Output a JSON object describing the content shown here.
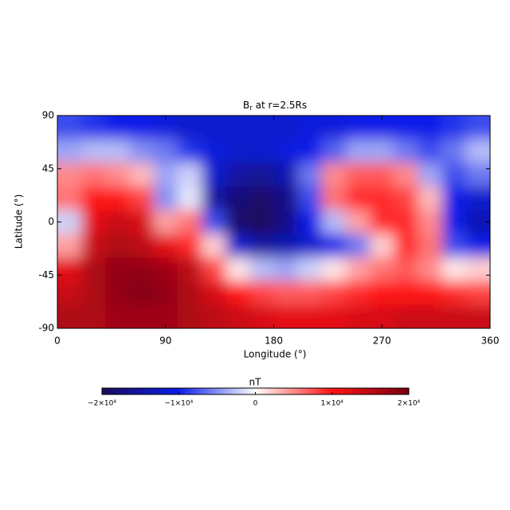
{
  "chart_data": {
    "type": "heatmap",
    "title_parts": [
      "B",
      "r",
      " at r=2.5Rs"
    ],
    "x_label": "Longitude (°)",
    "y_label": "Latitude (°)",
    "x": [
      10,
      30,
      50,
      70,
      90,
      110,
      130,
      150,
      170,
      190,
      210,
      230,
      250,
      270,
      290,
      310,
      330,
      350
    ],
    "y": [
      80,
      60,
      40,
      20,
      0,
      -20,
      -40,
      -60,
      -80
    ],
    "values": [
      [
        -8000,
        -9000,
        -10000,
        -10000,
        -11000,
        -12000,
        -12000,
        -12000,
        -12000,
        -12000,
        -11000,
        -11000,
        -10000,
        -10000,
        -10000,
        -10000,
        -9000,
        -8000
      ],
      [
        -4000,
        -3000,
        -3000,
        -5000,
        -6000,
        -9000,
        -11000,
        -12000,
        -12000,
        -11000,
        -10000,
        -7000,
        -4000,
        -4000,
        -6000,
        -8000,
        -6000,
        -3000
      ],
      [
        5000,
        6000,
        5000,
        3000,
        -4000,
        -2000,
        -12000,
        -15000,
        -16000,
        -14000,
        -6000,
        5000,
        7000,
        7000,
        5000,
        -4000,
        -8000,
        -6000
      ],
      [
        6000,
        10000,
        10000,
        8000,
        -5000,
        -1000,
        -15000,
        -18000,
        -19000,
        -17000,
        -8000,
        6000,
        9000,
        9000,
        8000,
        3000,
        -10000,
        -12000
      ],
      [
        -2000,
        12000,
        14000,
        13000,
        4000,
        6000,
        -8000,
        -19000,
        -20000,
        -17000,
        -10000,
        -3000,
        4000,
        9000,
        9000,
        5000,
        -10000,
        -14000
      ],
      [
        4000,
        14000,
        16000,
        15000,
        12000,
        9000,
        2000,
        -12000,
        -15000,
        -14000,
        -12000,
        -10000,
        -6000,
        2000,
        9000,
        6000,
        -8000,
        -10000
      ],
      [
        12000,
        16000,
        18000,
        18000,
        17000,
        15000,
        8000,
        1000,
        -3000,
        -4000,
        -2000,
        1000,
        4000,
        6000,
        7000,
        5000,
        1000,
        2000
      ],
      [
        14000,
        16000,
        18000,
        19000,
        18000,
        16000,
        13000,
        10000,
        8000,
        7000,
        7000,
        8000,
        9000,
        10000,
        10000,
        10000,
        9000,
        8000
      ],
      [
        16000,
        16000,
        17000,
        17000,
        17000,
        16000,
        15000,
        14000,
        13000,
        12000,
        12000,
        12000,
        13000,
        13000,
        14000,
        14000,
        14000,
        14000
      ]
    ],
    "xlim": [
      0,
      360
    ],
    "xticks": [
      0,
      90,
      180,
      270,
      360
    ],
    "ylim": [
      -90,
      90
    ],
    "yticks": [
      90,
      45,
      0,
      -45,
      -90
    ],
    "colorbar_label": "nT",
    "clim": [
      -20000,
      20000
    ],
    "colormap": [
      "#1c0a5c",
      "#0a1ee8",
      "#ffffff",
      "#ff1414",
      "#780012"
    ],
    "cticks": [
      {
        "value": -20000,
        "label": "−2×10⁴"
      },
      {
        "value": -10000,
        "label": "−1×10⁴"
      },
      0,
      {
        "value": 10000,
        "label": "1×10⁴"
      },
      {
        "value": 20000,
        "label": "2×10⁴"
      }
    ]
  }
}
